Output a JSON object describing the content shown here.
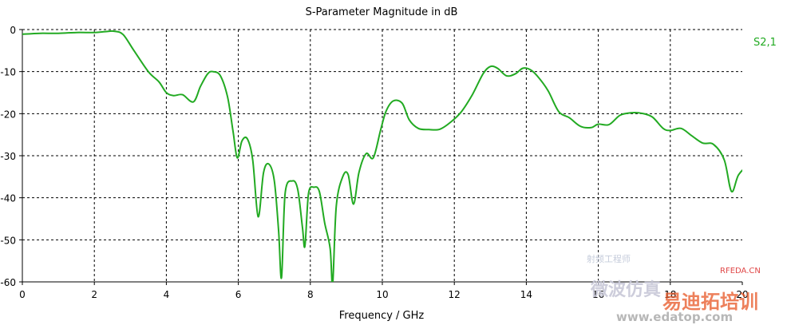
{
  "chart_data": {
    "type": "line",
    "title": "S-Parameter Magnitude in dB",
    "xlabel": "Frequency / GHz",
    "ylabel": "",
    "xlim": [
      0,
      20
    ],
    "ylim": [
      -60,
      0
    ],
    "xticks": [
      0,
      2,
      4,
      6,
      8,
      10,
      12,
      14,
      16,
      18,
      20
    ],
    "yticks": [
      0,
      -10,
      -20,
      -30,
      -40,
      -50,
      -60
    ],
    "grid": true,
    "legend_position": "top-right",
    "colors": {
      "series": "#22aa22",
      "grid": "#000000",
      "axis": "#000000"
    },
    "series": [
      {
        "name": "S2,1",
        "color": "#22aa22",
        "x": [
          0,
          0.5,
          1.0,
          1.5,
          2.0,
          2.3,
          2.55,
          2.8,
          3.1,
          3.5,
          3.8,
          4.0,
          4.2,
          4.45,
          4.75,
          4.95,
          5.15,
          5.3,
          5.5,
          5.7,
          5.85,
          5.97,
          6.1,
          6.25,
          6.4,
          6.55,
          6.7,
          6.85,
          7.0,
          7.12,
          7.2,
          7.3,
          7.5,
          7.65,
          7.78,
          7.85,
          7.95,
          8.1,
          8.25,
          8.4,
          8.55,
          8.62,
          8.72,
          8.9,
          9.05,
          9.2,
          9.35,
          9.55,
          9.75,
          9.95,
          10.1,
          10.3,
          10.55,
          10.75,
          11.0,
          11.3,
          11.6,
          11.9,
          12.2,
          12.5,
          12.8,
          13.0,
          13.2,
          13.45,
          13.7,
          13.9,
          14.1,
          14.3,
          14.6,
          14.9,
          15.2,
          15.5,
          15.8,
          16.0,
          16.3,
          16.6,
          16.9,
          17.2,
          17.5,
          17.8,
          18.0,
          18.3,
          18.6,
          18.9,
          19.2,
          19.5,
          19.7,
          19.9,
          20.2,
          20.4
        ],
        "values": [
          -1.1,
          -0.9,
          -0.9,
          -0.7,
          -0.7,
          -0.5,
          -0.4,
          -1.2,
          -5.0,
          -10.0,
          -12.5,
          -15.0,
          -15.7,
          -15.5,
          -17.2,
          -13.5,
          -10.5,
          -10.0,
          -11.0,
          -16.0,
          -24.0,
          -30.5,
          -26.5,
          -26.0,
          -31.0,
          -44.5,
          -34.0,
          -32.0,
          -36.0,
          -48.0,
          -59.0,
          -39.0,
          -36.0,
          -38.0,
          -47.0,
          -51.5,
          -39.0,
          -37.5,
          -38.5,
          -46.0,
          -52.0,
          -60.5,
          -42.0,
          -35.0,
          -34.5,
          -41.5,
          -34.0,
          -29.5,
          -30.5,
          -24.0,
          -19.5,
          -17.0,
          -17.5,
          -21.5,
          -23.5,
          -23.8,
          -23.7,
          -22.0,
          -19.5,
          -15.5,
          -10.5,
          -8.8,
          -9.2,
          -11.0,
          -10.5,
          -9.2,
          -9.5,
          -11.0,
          -14.5,
          -19.5,
          -21.0,
          -23.0,
          -23.3,
          -22.5,
          -22.6,
          -20.4,
          -19.8,
          -19.9,
          -20.8,
          -23.5,
          -24.0,
          -23.5,
          -25.3,
          -27.0,
          -27.3,
          -31.0,
          -38.5,
          -34.5,
          -32.5,
          -35.0
        ]
      }
    ]
  },
  "watermarks": {
    "line1": "微波仿真",
    "line2": "易迪拓培训",
    "line3": "www.edatop.com",
    "line4": "RFEDA.CN",
    "line5": "射频工程师"
  }
}
